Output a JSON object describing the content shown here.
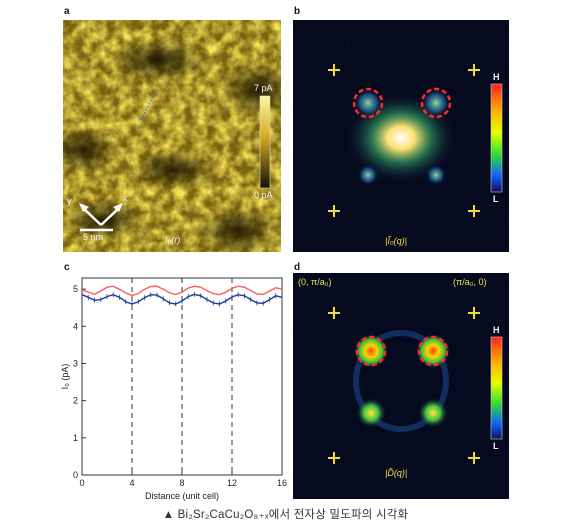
{
  "panels": {
    "a": {
      "label": "a",
      "scale_top": "7 pA",
      "scale_bottom": "0 pA",
      "axis_y": "y",
      "axis_x": "x",
      "scalebar": "5 nm",
      "name": "I₀(r)"
    },
    "b": {
      "label": "b",
      "colorbar_top": "H",
      "colorbar_bottom": "L",
      "name": "|Ĩ₀(q)|"
    },
    "c": {
      "label": "c"
    },
    "d": {
      "label": "d",
      "corner_left": "(0, π/a₀)",
      "corner_right": "(π/a₀, 0)",
      "colorbar_top": "H",
      "colorbar_bottom": "L",
      "name": "|D̃(q)|"
    }
  },
  "chart_data": {
    "type": "line",
    "xlabel": "Distance (unit cell)",
    "ylabel": "I₀ (pA)",
    "xlim": [
      0,
      16
    ],
    "ylim": [
      0,
      5.3
    ],
    "xticks": [
      0,
      4,
      8,
      12,
      16
    ],
    "yticks": [
      0,
      1,
      2,
      3,
      4,
      5
    ],
    "dashed_vlines": [
      4,
      8,
      12
    ],
    "series": [
      {
        "name": "",
        "color": "#ff5c5c",
        "values": [
          [
            0,
            4.98
          ],
          [
            0.5,
            4.92
          ],
          [
            1,
            4.86
          ],
          [
            1.5,
            4.95
          ],
          [
            2,
            5.05
          ],
          [
            2.5,
            5.08
          ],
          [
            3,
            5.0
          ],
          [
            3.5,
            4.9
          ],
          [
            4,
            4.83
          ],
          [
            4.5,
            4.88
          ],
          [
            5,
            5.0
          ],
          [
            5.5,
            5.07
          ],
          [
            6,
            5.08
          ],
          [
            6.5,
            5.0
          ],
          [
            7,
            4.9
          ],
          [
            7.5,
            4.86
          ],
          [
            8,
            4.92
          ],
          [
            8.5,
            5.03
          ],
          [
            9,
            5.08
          ],
          [
            9.5,
            5.05
          ],
          [
            10,
            4.96
          ],
          [
            10.5,
            4.88
          ],
          [
            11,
            4.85
          ],
          [
            11.5,
            4.92
          ],
          [
            12,
            5.02
          ],
          [
            12.5,
            5.08
          ],
          [
            13,
            5.05
          ],
          [
            13.5,
            4.96
          ],
          [
            14,
            4.87
          ],
          [
            14.5,
            4.86
          ],
          [
            15,
            4.95
          ],
          [
            15.5,
            5.04
          ],
          [
            16,
            5.0
          ]
        ]
      },
      {
        "name": "",
        "color": "#1f3b9a",
        "values": [
          [
            0,
            4.85
          ],
          [
            0.5,
            4.78
          ],
          [
            1,
            4.7
          ],
          [
            1.5,
            4.72
          ],
          [
            2,
            4.8
          ],
          [
            2.5,
            4.85
          ],
          [
            3,
            4.78
          ],
          [
            3.5,
            4.66
          ],
          [
            4,
            4.6
          ],
          [
            4.5,
            4.66
          ],
          [
            5,
            4.77
          ],
          [
            5.5,
            4.85
          ],
          [
            6,
            4.84
          ],
          [
            6.5,
            4.74
          ],
          [
            7,
            4.63
          ],
          [
            7.5,
            4.6
          ],
          [
            8,
            4.68
          ],
          [
            8.5,
            4.8
          ],
          [
            9,
            4.86
          ],
          [
            9.5,
            4.82
          ],
          [
            10,
            4.72
          ],
          [
            10.5,
            4.63
          ],
          [
            11,
            4.6
          ],
          [
            11.5,
            4.68
          ],
          [
            12,
            4.79
          ],
          [
            12.5,
            4.85
          ],
          [
            13,
            4.82
          ],
          [
            13.5,
            4.72
          ],
          [
            14,
            4.63
          ],
          [
            14.5,
            4.62
          ],
          [
            15,
            4.72
          ],
          [
            15.5,
            4.82
          ],
          [
            16,
            4.78
          ]
        ]
      }
    ]
  },
  "caption": "▲ Bi₂Sr₂CaCu₂O₈₊ₓ에서 전자상 밀도파의 시각화"
}
